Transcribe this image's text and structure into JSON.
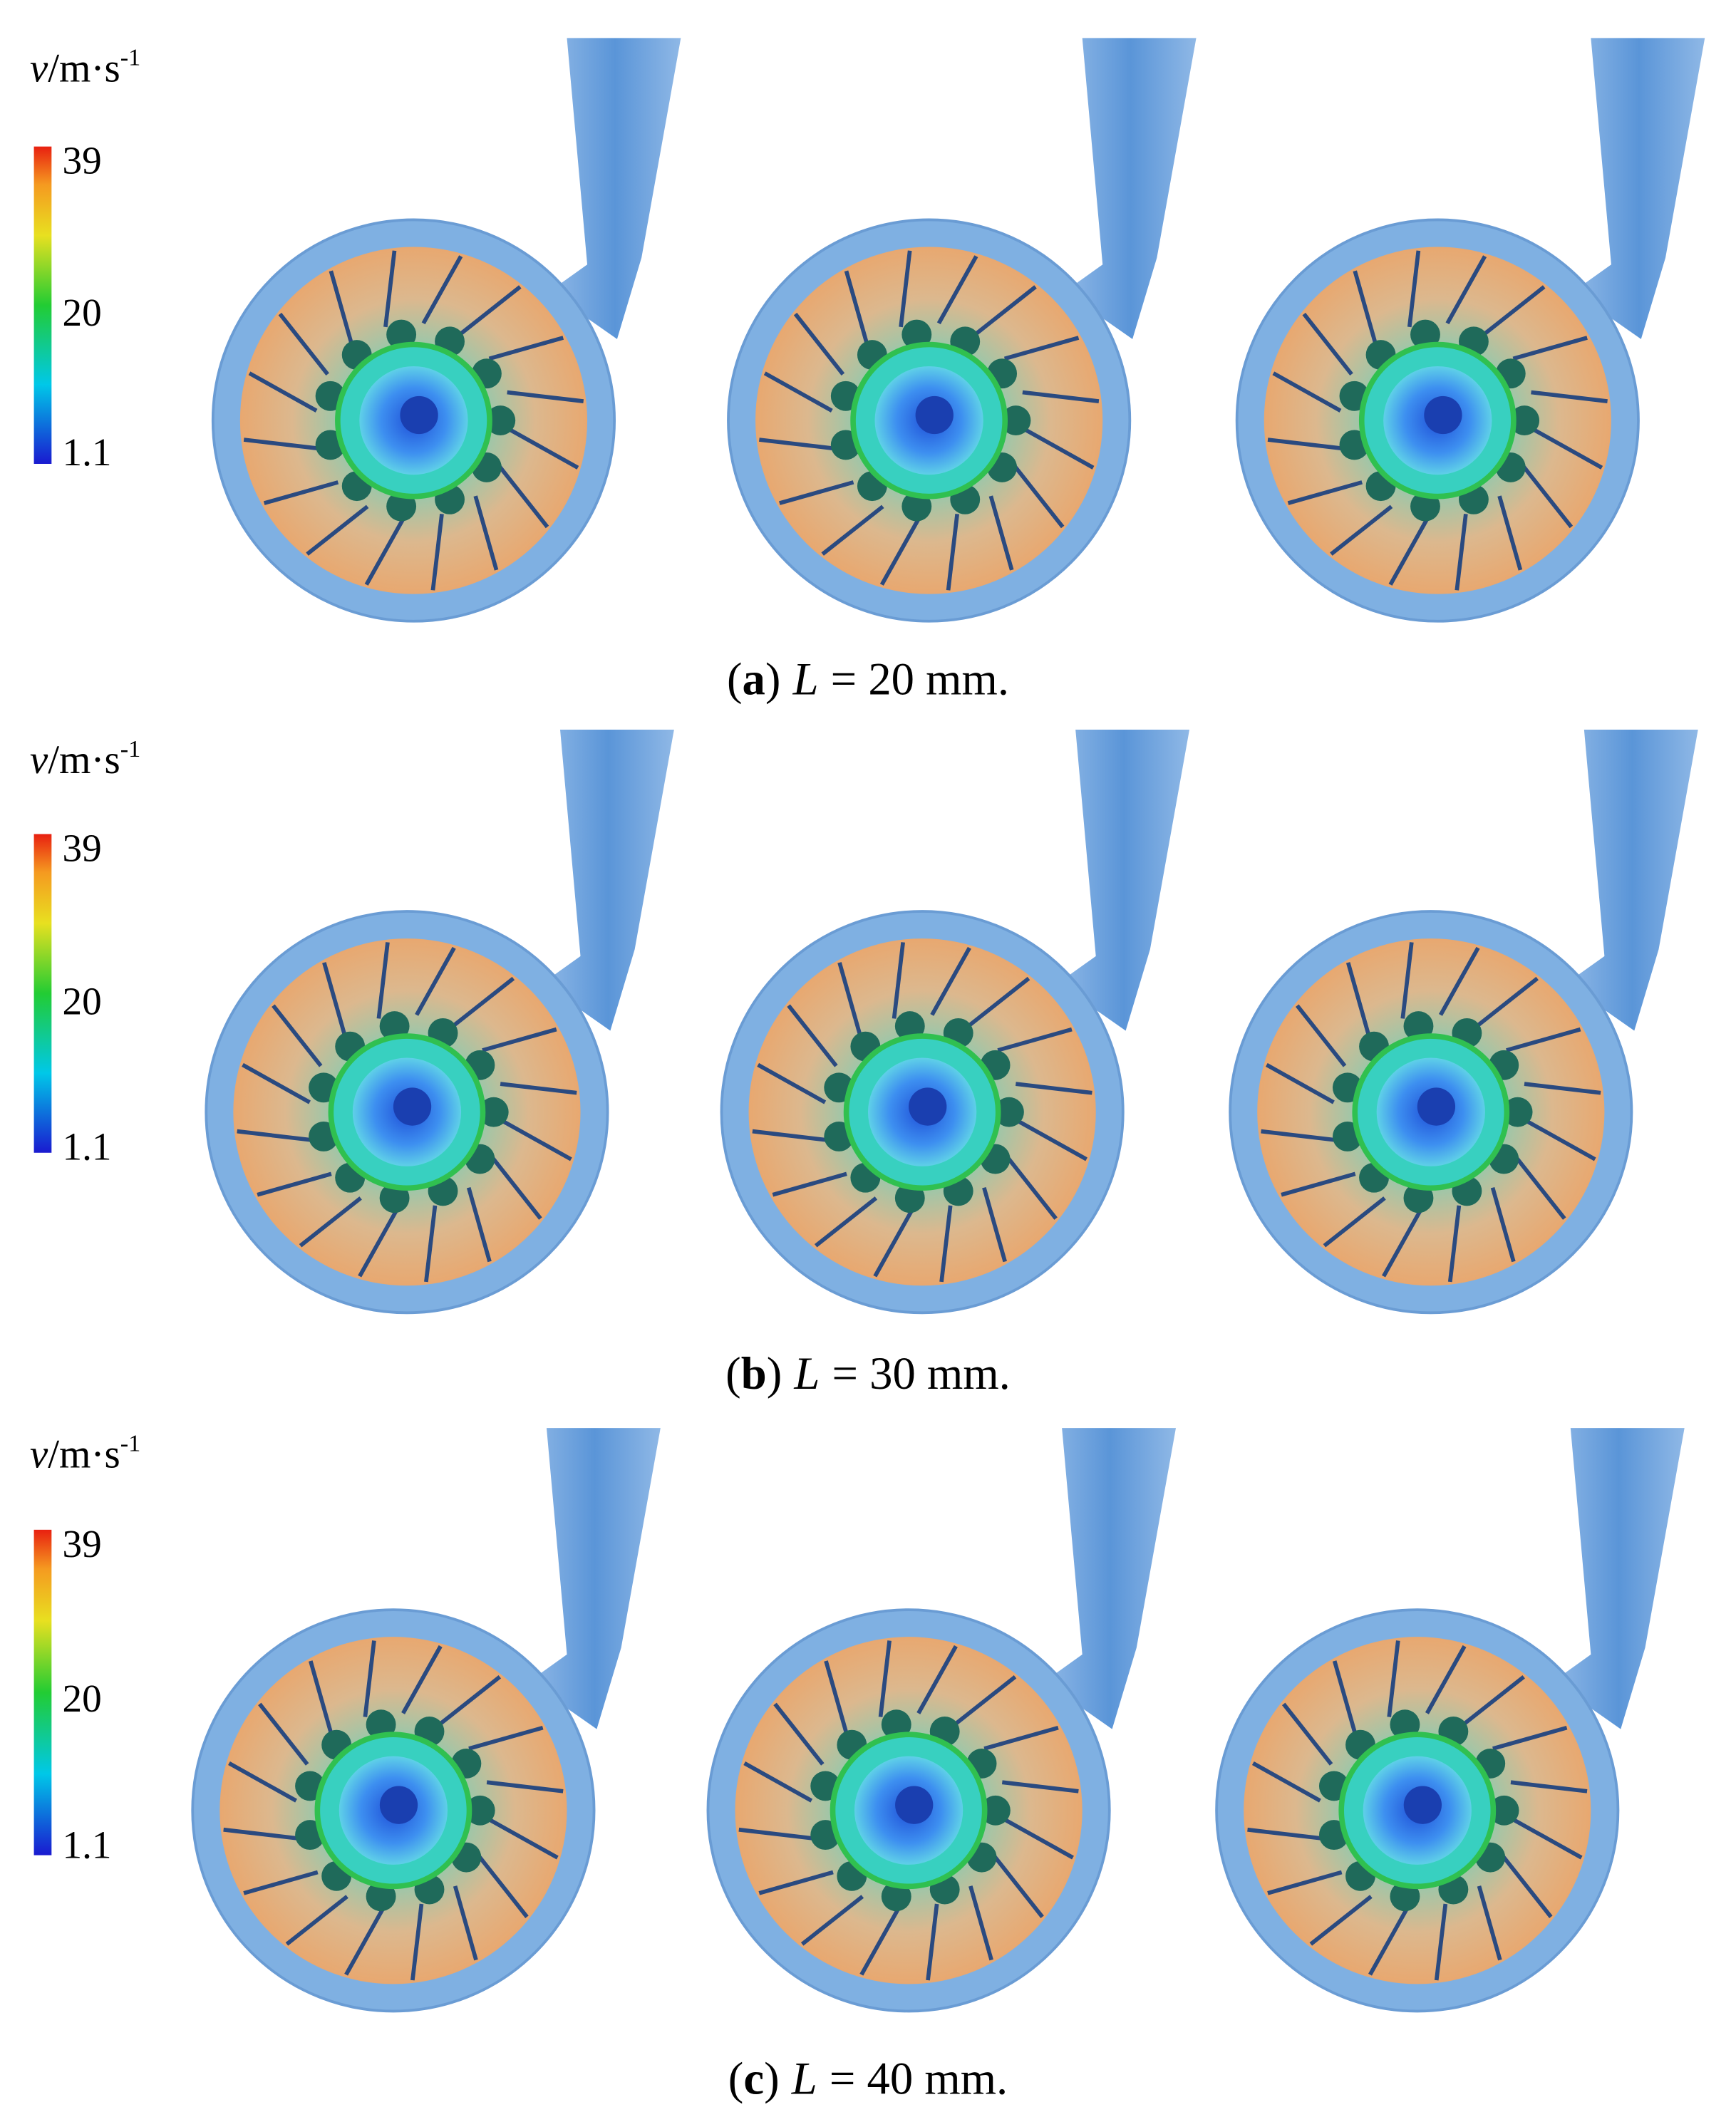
{
  "panels": [
    {
      "legend": {
        "symbol": "v",
        "unit": "/m·s",
        "exponent": "-1",
        "ticks": [
          "39",
          "20",
          "1.1"
        ]
      },
      "caption": {
        "open": "(",
        "letter": "a",
        "close": ")",
        "variable": "L",
        "equation": "= 20 mm."
      }
    },
    {
      "legend": {
        "symbol": "v",
        "unit": "/m·s",
        "exponent": "-1",
        "ticks": [
          "39",
          "20",
          "1.1"
        ]
      },
      "caption": {
        "open": "(",
        "letter": "b",
        "close": ")",
        "variable": "L",
        "equation": "= 30 mm."
      }
    },
    {
      "legend": {
        "symbol": "v",
        "unit": "/m·s",
        "exponent": "-1",
        "ticks": [
          "39",
          "20",
          "1.1"
        ]
      },
      "caption": {
        "open": "(",
        "letter": "c",
        "close": ")",
        "variable": "L",
        "equation": "= 40 mm."
      }
    }
  ]
}
